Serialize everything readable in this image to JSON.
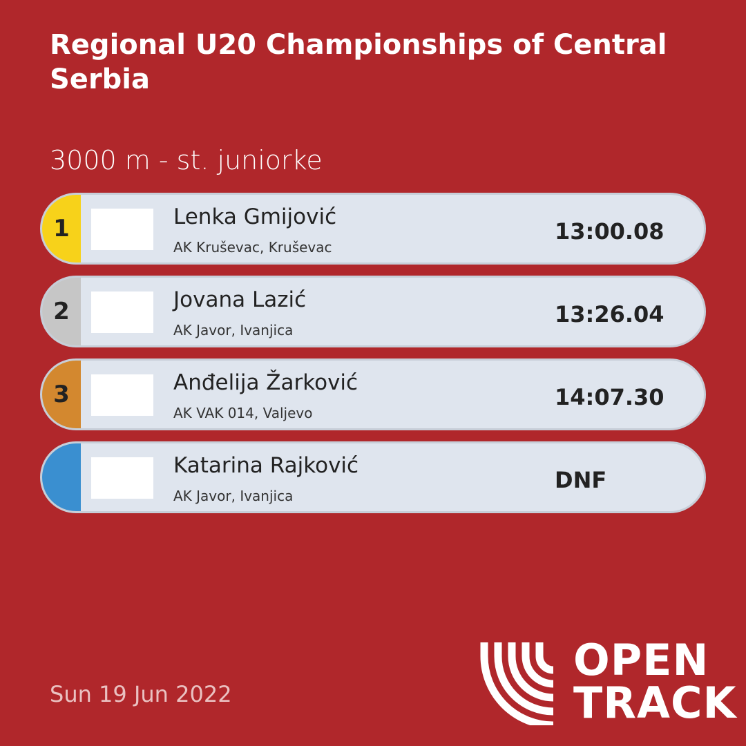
{
  "header": {
    "title": "Regional U20 Championships of Central Serbia",
    "event": "3000 m - st. juniorke"
  },
  "results": [
    {
      "rank": "1",
      "name": "Lenka Gmijović",
      "club": "AK Kruševac, Kruševac",
      "mark": "13:00.08"
    },
    {
      "rank": "2",
      "name": "Jovana Lazić",
      "club": "AK Javor, Ivanjica",
      "mark": "13:26.04"
    },
    {
      "rank": "3",
      "name": "Anđelija Žarković",
      "club": "AK VAK 014, Valjevo",
      "mark": "14:07.30"
    },
    {
      "name": "Katarina Rajković",
      "club": "AK Javor, Ivanjica",
      "mark": "DNF"
    }
  ],
  "footer": {
    "date": "Sun 19 Jun 2022",
    "brand_line1": "OPEN",
    "brand_line2": "TRACK"
  }
}
